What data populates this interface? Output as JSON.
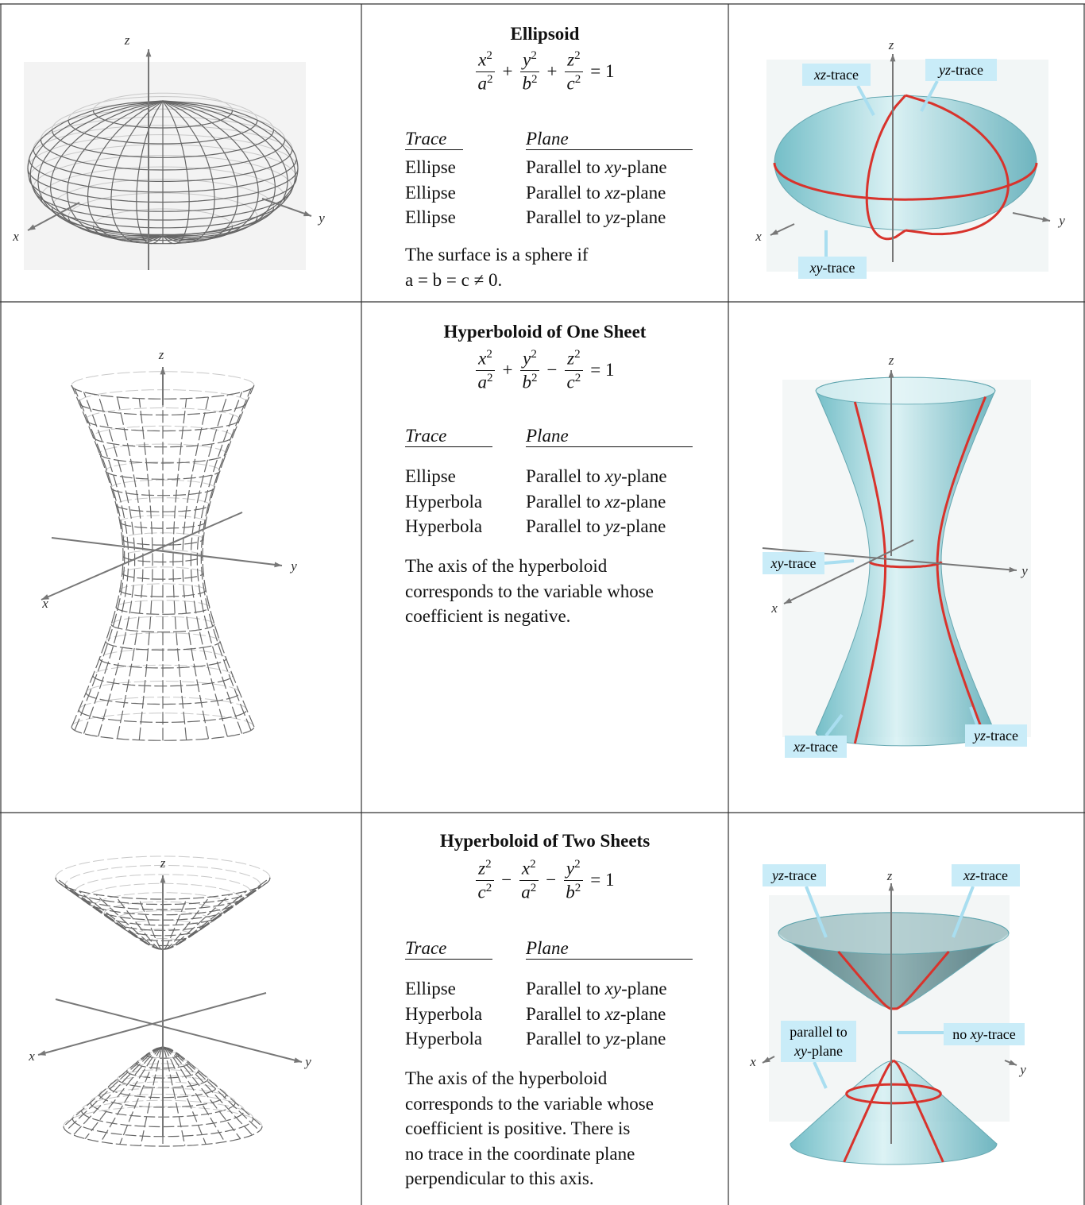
{
  "rows": [
    {
      "title": "Ellipsoid",
      "equation": {
        "terms": [
          {
            "num": "x",
            "den": "a"
          },
          {
            "sign": "+",
            "num": "y",
            "den": "b"
          },
          {
            "sign": "+",
            "num": "z",
            "den": "c"
          }
        ],
        "power": "2",
        "rhs": "= 1"
      },
      "table": {
        "headers": [
          "Trace",
          "Plane"
        ],
        "rows": [
          [
            "Ellipse",
            [
              "Parallel to ",
              "xy",
              "-plane"
            ]
          ],
          [
            "Ellipse",
            [
              "Parallel to ",
              "xz",
              "-plane"
            ]
          ],
          [
            "Ellipse",
            [
              "Parallel to ",
              "yz",
              "-plane"
            ]
          ]
        ]
      },
      "note": [
        "The surface is a sphere if",
        "a = b = c ≠ 0."
      ],
      "left_axes": [
        "x",
        "y",
        "z"
      ],
      "right_axes": [
        "x",
        "y",
        "z"
      ],
      "right_labels": [
        [
          "xz",
          "-trace"
        ],
        [
          "yz",
          "-trace"
        ],
        [
          "xy",
          "-trace"
        ]
      ]
    },
    {
      "title": "Hyperboloid of One Sheet",
      "equation": {
        "terms": [
          {
            "num": "x",
            "den": "a"
          },
          {
            "sign": "+",
            "num": "y",
            "den": "b"
          },
          {
            "sign": "−",
            "num": "z",
            "den": "c"
          }
        ],
        "power": "2",
        "rhs": "= 1"
      },
      "table": {
        "headers": [
          "Trace",
          "Plane"
        ],
        "rows": [
          [
            "Ellipse",
            [
              "Parallel to ",
              "xy",
              "-plane"
            ]
          ],
          [
            "Hyperbola",
            [
              "Parallel to ",
              "xz",
              "-plane"
            ]
          ],
          [
            "Hyperbola",
            [
              "Parallel to ",
              "yz",
              "-plane"
            ]
          ]
        ]
      },
      "note": [
        "The axis of the hyperboloid",
        "corresponds to the variable whose",
        "coefficient is negative."
      ],
      "left_axes": [
        "x",
        "y",
        "z"
      ],
      "right_axes": [
        "x",
        "y",
        "z"
      ],
      "right_labels": [
        [
          "xy",
          "-trace"
        ],
        [
          "xz",
          "-trace"
        ],
        [
          "yz",
          "-trace"
        ]
      ]
    },
    {
      "title": "Hyperboloid of Two Sheets",
      "equation": {
        "terms": [
          {
            "num": "z",
            "den": "c"
          },
          {
            "sign": "−",
            "num": "x",
            "den": "a"
          },
          {
            "sign": "−",
            "num": "y",
            "den": "b"
          }
        ],
        "power": "2",
        "rhs": "= 1"
      },
      "table": {
        "headers": [
          "Trace",
          "Plane"
        ],
        "rows": [
          [
            "Ellipse",
            [
              "Parallel to ",
              "xy",
              "-plane"
            ]
          ],
          [
            "Hyperbola",
            [
              "Parallel to ",
              "xz",
              "-plane"
            ]
          ],
          [
            "Hyperbola",
            [
              "Parallel to ",
              "yz",
              "-plane"
            ]
          ]
        ]
      },
      "note": [
        "The axis of the hyperboloid",
        "corresponds to the variable whose",
        "coefficient is positive. There is",
        "no trace in the coordinate plane",
        "perpendicular to this axis."
      ],
      "left_axes": [
        "x",
        "y",
        "z"
      ],
      "right_axes": [
        "x",
        "y",
        "z"
      ],
      "right_labels": [
        [
          "yz",
          "-trace"
        ],
        [
          "xz",
          "-trace"
        ],
        [
          "parallel to",
          "xy",
          "-plane"
        ],
        [
          "no ",
          "xy",
          "-trace"
        ]
      ]
    }
  ]
}
